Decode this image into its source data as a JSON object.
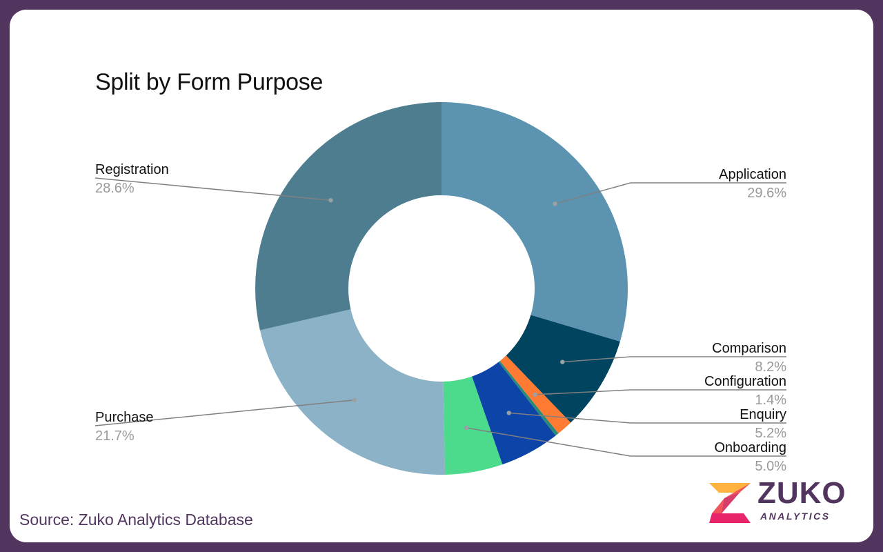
{
  "chart_data": {
    "type": "pie",
    "title": "Split by Form Purpose",
    "donut": true,
    "slices": [
      {
        "label": "Application",
        "value": 29.6,
        "display": "29.6%",
        "color": "#5b93b0"
      },
      {
        "label": "Comparison",
        "value": 8.2,
        "display": "8.2%",
        "color": "#00445f"
      },
      {
        "label": "Configuration",
        "value": 1.4,
        "display": "1.4%",
        "color": "#ff7a33"
      },
      {
        "label": "",
        "value": 0.3,
        "display": "",
        "color": "#2a8a7a"
      },
      {
        "label": "Enquiry",
        "value": 5.2,
        "display": "5.2%",
        "color": "#0d44a8"
      },
      {
        "label": "Onboarding",
        "value": 5.0,
        "display": "5.0%",
        "color": "#4cdb8c"
      },
      {
        "label": "Purchase",
        "value": 21.7,
        "display": "21.7%",
        "color": "#8bb2c6"
      },
      {
        "label": "Registration",
        "value": 28.6,
        "display": "28.6%",
        "color": "#4e7d90"
      }
    ]
  },
  "footer": {
    "source": "Source: Zuko Analytics Database"
  },
  "logo": {
    "word": "ZUKO",
    "sub": "ANALYTICS",
    "icon": "zuko-z-icon"
  }
}
